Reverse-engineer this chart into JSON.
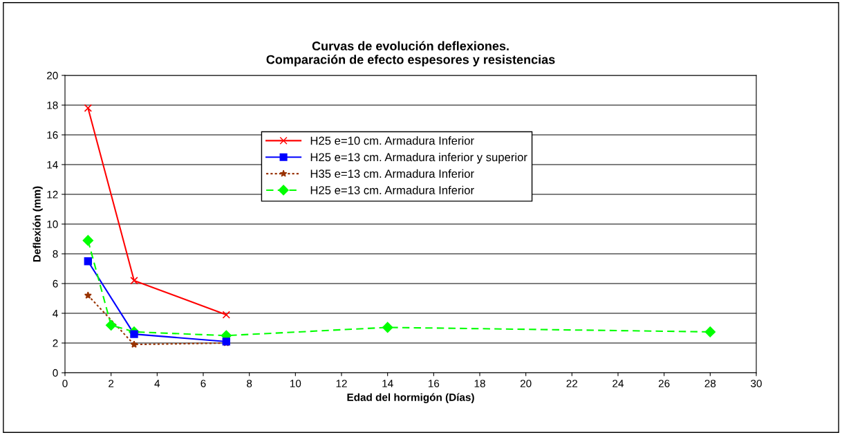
{
  "chart_data": {
    "type": "line",
    "title": "Curvas de evolución deflexiones.\nComparación de efecto espesores y resistencias",
    "xlabel": "Edad del hormigón (Días)",
    "ylabel": "Deflexión (mm)",
    "xlim": [
      0,
      30
    ],
    "xticks": [
      0,
      2,
      4,
      6,
      8,
      10,
      12,
      14,
      16,
      18,
      20,
      22,
      24,
      26,
      28,
      30
    ],
    "ylim": [
      0,
      20
    ],
    "yticks": [
      0,
      2,
      4,
      6,
      8,
      10,
      12,
      14,
      16,
      18,
      20
    ],
    "grid": "y",
    "legend": "top",
    "series": [
      {
        "name": "H25 e=10 cm. Armadura Inferior",
        "color": "#ff0000",
        "marker": "cross",
        "line_style": "solid",
        "x": [
          1,
          3,
          7
        ],
        "values": [
          17.8,
          6.2,
          3.9
        ]
      },
      {
        "name": "H25 e=13 cm. Armadura inferior y superior",
        "color": "#0000ff",
        "marker": "square",
        "line_style": "solid",
        "x": [
          1,
          3,
          7
        ],
        "values": [
          7.5,
          2.6,
          2.1
        ]
      },
      {
        "name": "H35 e=13 cm. Armadura Inferior",
        "color": "#993300",
        "marker": "star",
        "line_style": "dotted",
        "x": [
          1,
          3,
          7
        ],
        "values": [
          5.2,
          1.9,
          2.0
        ]
      },
      {
        "name": "H25 e=13 cm. Armadura Inferior",
        "color": "#00ff00",
        "marker": "diamond",
        "line_style": "dashed",
        "x": [
          1,
          2,
          3,
          7,
          14,
          28
        ],
        "values": [
          8.9,
          3.2,
          2.75,
          2.5,
          3.05,
          2.75
        ]
      }
    ]
  }
}
